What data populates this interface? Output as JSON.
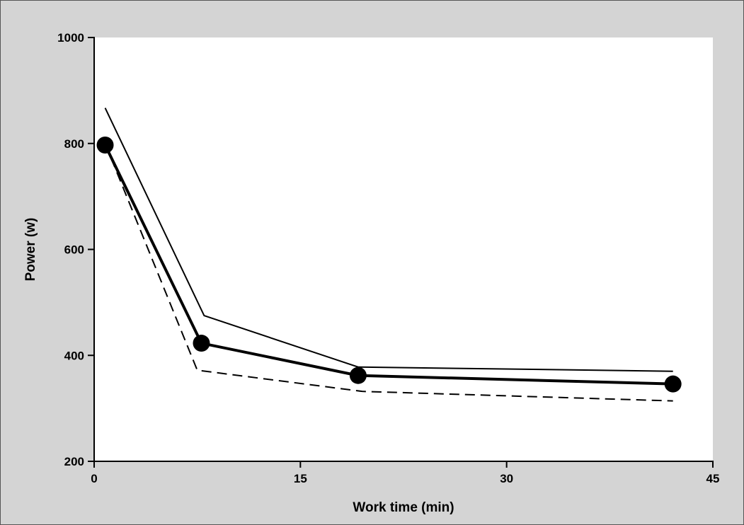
{
  "chart_data": {
    "type": "line",
    "title": "",
    "xlabel": "Work time (min)",
    "ylabel": "Power (w)",
    "xlim": [
      0,
      45
    ],
    "ylim": [
      200,
      1000
    ],
    "xticks": [
      0,
      15,
      30,
      45
    ],
    "yticks": [
      200,
      400,
      600,
      800,
      1000
    ],
    "grid": false,
    "legend": "none",
    "colors": {
      "background": "#d4d4d4",
      "plot_area": "#ffffff",
      "line": "#000000"
    },
    "series": [
      {
        "style": "thick-solid-with-markers",
        "x": [
          0.8,
          7.8,
          19.2,
          42.1
        ],
        "y": [
          797,
          423,
          362,
          346
        ]
      },
      {
        "style": "thin-solid",
        "x": [
          0.8,
          8.0,
          19.2,
          42.1
        ],
        "y": [
          867,
          475,
          378,
          370
        ]
      },
      {
        "style": "dashed",
        "x": [
          0.8,
          7.5,
          19.5,
          42.1
        ],
        "y": [
          800,
          372,
          332,
          314
        ]
      }
    ]
  }
}
